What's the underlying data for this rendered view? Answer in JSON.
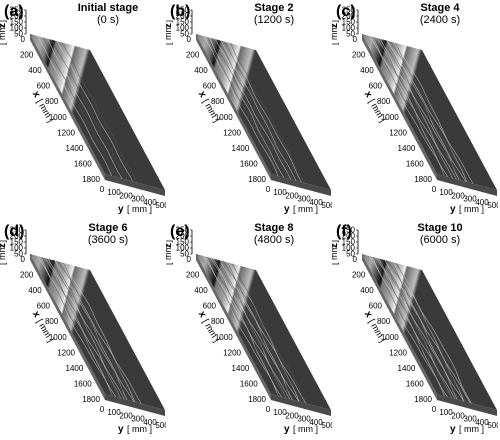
{
  "panels": [
    {
      "label": "(a)",
      "title": "Initial stage",
      "time": "(0 s)",
      "channel_darkness": 0.15
    },
    {
      "label": "(b)",
      "title": "Stage 2",
      "time": "(1200 s)",
      "channel_darkness": 0.45
    },
    {
      "label": "(c)",
      "title": "Stage 4",
      "time": "(2400 s)",
      "channel_darkness": 0.75
    },
    {
      "label": "(d)",
      "title": "Stage 6",
      "time": "(3600 s)",
      "channel_darkness": 0.8
    },
    {
      "label": "(e)",
      "title": "Stage 8",
      "time": "(4800 s)",
      "channel_darkness": 0.85
    },
    {
      "label": "(f)",
      "title": "Stage 10",
      "time": "(6000 s)",
      "channel_darkness": 0.9
    }
  ],
  "axes": {
    "z_label": "z",
    "z_unit": "[ mm ]",
    "z_ticks": [
      "250",
      "200",
      "150",
      "100",
      "50"
    ],
    "x_label": "x",
    "x_unit": "[ mm ]",
    "x_ticks": [
      "0",
      "200",
      "400",
      "600",
      "800",
      "1000",
      "1200",
      "1400",
      "1600",
      "1800"
    ],
    "y_label": "y",
    "y_unit": "[ mm ]",
    "y_ticks": [
      "0",
      "100",
      "200",
      "300",
      "400",
      "500"
    ]
  },
  "colors": {
    "surface_base": "#9a9a9a",
    "surface_dark": "#3a3a3a",
    "surface_light": "#e6e6e6",
    "background": "#ffffff"
  }
}
